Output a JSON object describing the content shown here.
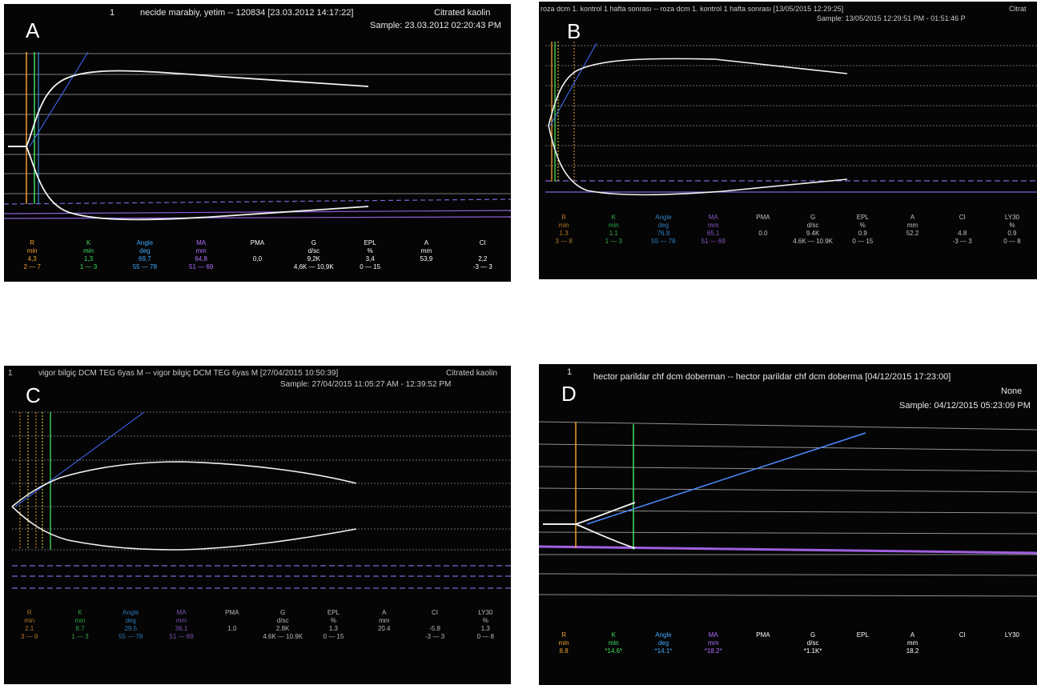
{
  "panels": {
    "A": {
      "letter": "A",
      "header_index": "1",
      "header_line1": "necide marabiy, yetim -- 120834 [23.03.2012 14:17:22]",
      "header_reagent": "Citrated kaolin",
      "header_line2": "Sample: 23.03.2012 02:20:43 PM",
      "params": [
        {
          "name": "R",
          "unit": "min",
          "value": "4,3",
          "range": "2 — 7",
          "color": "#f0a030"
        },
        {
          "name": "K",
          "unit": "min",
          "value": "1,3",
          "range": "1 — 3",
          "color": "#40e060"
        },
        {
          "name": "Angle",
          "unit": "deg",
          "value": "69,7",
          "range": "55 — 78",
          "color": "#40a8ff"
        },
        {
          "name": "MA",
          "unit": "mm",
          "value": "64,8",
          "range": "51 — 69",
          "color": "#b070ff"
        },
        {
          "name": "PMA",
          "unit": "",
          "value": "0,0",
          "range": "",
          "color": "#ffffff"
        },
        {
          "name": "G",
          "unit": "d/sc",
          "value": "9,2K",
          "range": "4,6K — 10,9K",
          "color": "#ffffff"
        },
        {
          "name": "EPL",
          "unit": "%",
          "value": "3,4",
          "range": "0 — 15",
          "color": "#ffffff"
        },
        {
          "name": "A",
          "unit": "mm",
          "value": "53,9",
          "range": "",
          "color": "#ffffff"
        },
        {
          "name": "CI",
          "unit": "",
          "value": "2,2",
          "range": "-3 — 3",
          "color": "#ffffff"
        }
      ]
    },
    "B": {
      "letter": "B",
      "header_index": "",
      "header_line1": "roza dcm 1. kontrol 1 hafta sonrası -- roza dcm 1. kontrol 1 hafta sonrası [13/05/2015 12:29:25]",
      "header_reagent": "Citrat",
      "header_line2": "Sample: 13/05/2015 12:29:51 PM - 01:51:46 P",
      "params": [
        {
          "name": "R",
          "unit": "min",
          "value": "1.3",
          "range": "3 — 8",
          "color": "#f0a030"
        },
        {
          "name": "K",
          "unit": "min",
          "value": "1.1",
          "range": "1 — 3",
          "color": "#40e060"
        },
        {
          "name": "Angle",
          "unit": "deg",
          "value": "76.9",
          "range": "55 — 78",
          "color": "#40a8ff"
        },
        {
          "name": "MA",
          "unit": "mm",
          "value": "65.1",
          "range": "51 — 69",
          "color": "#b070ff"
        },
        {
          "name": "PMA",
          "unit": "",
          "value": "0.0",
          "range": "",
          "color": "#ffffff"
        },
        {
          "name": "G",
          "unit": "d/sc",
          "value": "9.4K",
          "range": "4.6K — 10.9K",
          "color": "#ffffff"
        },
        {
          "name": "EPL",
          "unit": "%",
          "value": "0.9",
          "range": "0 — 15",
          "color": "#ffffff"
        },
        {
          "name": "A",
          "unit": "mm",
          "value": "52.2",
          "range": "",
          "color": "#ffffff"
        },
        {
          "name": "CI",
          "unit": "",
          "value": "4.8",
          "range": "-3 — 3",
          "color": "#ffffff"
        },
        {
          "name": "LY30",
          "unit": "%",
          "value": "0.9",
          "range": "0 — 8",
          "color": "#ffffff"
        }
      ]
    },
    "C": {
      "letter": "C",
      "header_index": "1",
      "header_line1": "vigor bilgiç DCM TEG 6yas M -- vigor bilgiç DCM TEG 6yas M [27/04/2015 10:50:39]",
      "header_reagent": "Citrated kaolin",
      "header_line2": "Sample: 27/04/2015 11:05:27 AM - 12:39:52 PM",
      "params": [
        {
          "name": "R",
          "unit": "min",
          "value": "2.1",
          "range": "3 — 8",
          "color": "#f0a030"
        },
        {
          "name": "K",
          "unit": "min",
          "value": "8.7",
          "range": "1 — 3",
          "color": "#40e060"
        },
        {
          "name": "Angle",
          "unit": "deg",
          "value": "29.5",
          "range": "55 — 78",
          "color": "#40a8ff"
        },
        {
          "name": "MA",
          "unit": "mm",
          "value": "36.1",
          "range": "51 — 69",
          "color": "#b070ff"
        },
        {
          "name": "PMA",
          "unit": "",
          "value": "1.0",
          "range": "",
          "color": "#ffffff"
        },
        {
          "name": "G",
          "unit": "d/sc",
          "value": "2.8K",
          "range": "4.6K — 10.9K",
          "color": "#ffffff"
        },
        {
          "name": "EPL",
          "unit": "%",
          "value": "1.3",
          "range": "0 — 15",
          "color": "#ffffff"
        },
        {
          "name": "A",
          "unit": "mm",
          "value": "20.4",
          "range": "",
          "color": "#ffffff"
        },
        {
          "name": "CI",
          "unit": "",
          "value": "-5.8",
          "range": "-3 — 3",
          "color": "#ffffff"
        },
        {
          "name": "LY30",
          "unit": "%",
          "value": "1.3",
          "range": "0 — 8",
          "color": "#ffffff"
        }
      ]
    },
    "D": {
      "letter": "D",
      "header_index": "1",
      "header_line1": "hector parildar chf dcm doberman -- hector parildar chf dcm doberma [04/12/2015 17:23:00]",
      "header_reagent": "None",
      "header_line2": "Sample: 04/12/2015 05:23:09 PM",
      "params": [
        {
          "name": "R",
          "unit": "min",
          "value": "8.8",
          "range": "",
          "color": "#f0a030"
        },
        {
          "name": "K",
          "unit": "min",
          "value": "*14.6*",
          "range": "",
          "color": "#40e060"
        },
        {
          "name": "Angle",
          "unit": "deg",
          "value": "*14.1*",
          "range": "",
          "color": "#40a8ff"
        },
        {
          "name": "MA",
          "unit": "mm",
          "value": "*18.2*",
          "range": "",
          "color": "#b070ff"
        },
        {
          "name": "PMA",
          "unit": "",
          "value": "",
          "range": "",
          "color": "#ffffff"
        },
        {
          "name": "G",
          "unit": "d/sc",
          "value": "*1.1K*",
          "range": "",
          "color": "#ffffff"
        },
        {
          "name": "EPL",
          "unit": "",
          "value": "",
          "range": "",
          "color": "#ffffff"
        },
        {
          "name": "A",
          "unit": "mm",
          "value": "18.2",
          "range": "",
          "color": "#ffffff"
        },
        {
          "name": "CI",
          "unit": "",
          "value": "",
          "range": "",
          "color": "#ffffff"
        },
        {
          "name": "LY30",
          "unit": "",
          "value": "",
          "range": "",
          "color": "#ffffff"
        }
      ]
    }
  },
  "colors": {
    "R": "#f0a030",
    "K": "#40e060",
    "angle": "#40a8ff",
    "MA": "#b070ff",
    "trace": "#f2f2f2",
    "grid": "#808080",
    "background": "#050505"
  }
}
